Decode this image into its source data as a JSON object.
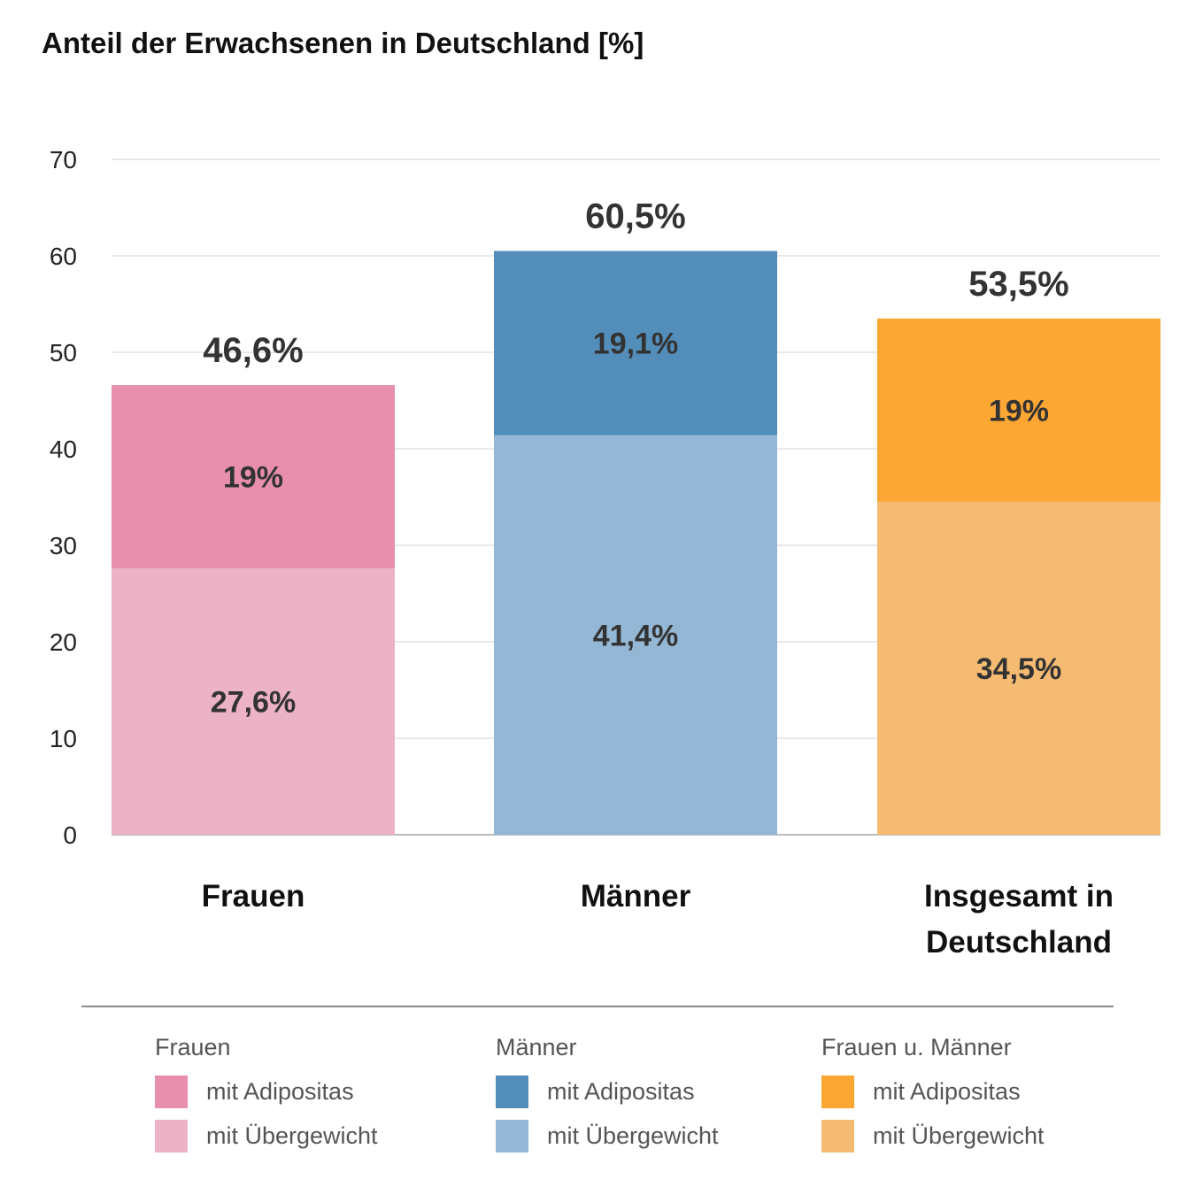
{
  "title": "Anteil der Erwachsenen in Deutschland [%]",
  "chart_data": {
    "type": "bar",
    "stacked": true,
    "ylim": [
      0,
      70
    ],
    "yticks": [
      0,
      10,
      20,
      30,
      40,
      50,
      60,
      70
    ],
    "grid": true,
    "bars": [
      {
        "category_lines": [
          "Frauen"
        ],
        "total_label": "46,6%",
        "segments": [
          {
            "value": 27.6,
            "label": "27,6%",
            "color": "#ecb2c5"
          },
          {
            "value": 19.0,
            "label": "19%",
            "color": "#e78fad"
          }
        ]
      },
      {
        "category_lines": [
          "Männer"
        ],
        "total_label": "60,5%",
        "segments": [
          {
            "value": 41.4,
            "label": "41,4%",
            "color": "#94b7d5"
          },
          {
            "value": 19.1,
            "label": "19,1%",
            "color": "#538eba"
          }
        ]
      },
      {
        "category_lines": [
          "Insgesamt in",
          "Deutschland"
        ],
        "total_label": "53,5%",
        "segments": [
          {
            "value": 34.5,
            "label": "34,5%",
            "color": "#f5bb72"
          },
          {
            "value": 19.0,
            "label": "19%",
            "color": "#fca634"
          }
        ]
      }
    ]
  },
  "legend": {
    "groups": [
      {
        "title": "Frauen",
        "items": [
          {
            "label": "mit Adipositas",
            "color": "#e78fad"
          },
          {
            "label": "mit Übergewicht",
            "color": "#ecb2c5"
          }
        ]
      },
      {
        "title": "Männer",
        "items": [
          {
            "label": "mit Adipositas",
            "color": "#538eba"
          },
          {
            "label": "mit Übergewicht",
            "color": "#94b7d5"
          }
        ]
      },
      {
        "title": "Frauen u. Männer",
        "items": [
          {
            "label": "mit Adipositas",
            "color": "#fca634"
          },
          {
            "label": "mit Übergewicht",
            "color": "#f5bb72"
          }
        ]
      }
    ]
  }
}
